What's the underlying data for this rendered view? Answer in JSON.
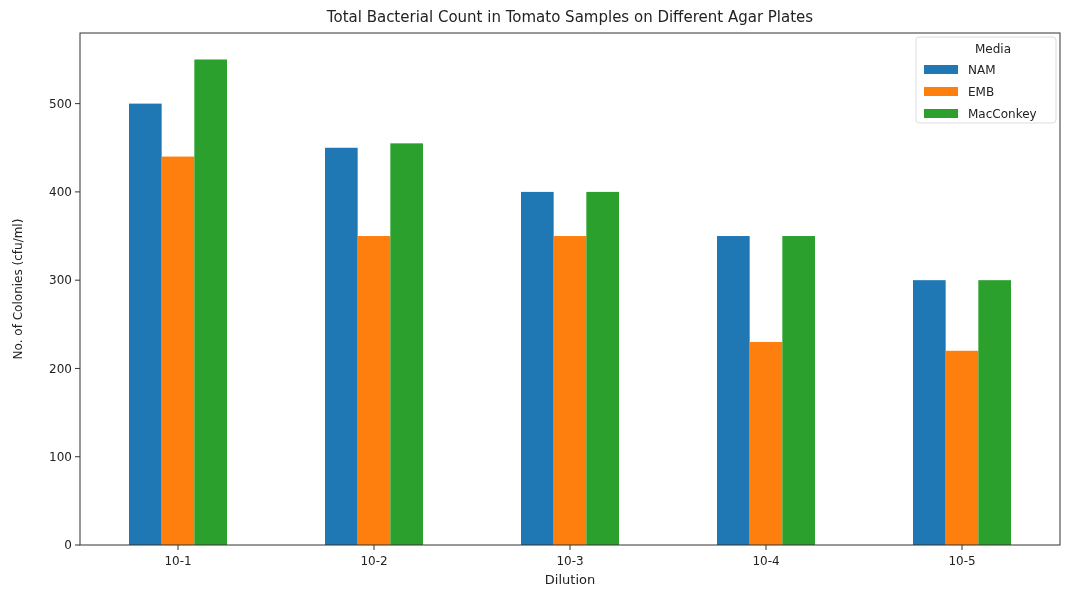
{
  "chart_data": {
    "type": "bar",
    "title": "Total Bacterial Count in Tomato Samples on Different Agar Plates",
    "xlabel": "Dilution",
    "ylabel": "No. of Colonies (cfu/ml)",
    "legend_title": "Media",
    "legend": "top right",
    "categories": [
      "10-1",
      "10-2",
      "10-3",
      "10-4",
      "10-5"
    ],
    "series": [
      {
        "name": "NAM",
        "color": "#1f77b4",
        "values": [
          500,
          450,
          400,
          350,
          300
        ]
      },
      {
        "name": "EMB",
        "color": "#ff7f0e",
        "values": [
          440,
          350,
          350,
          230,
          220
        ]
      },
      {
        "name": "MacConkey",
        "color": "#2ca02c",
        "values": [
          550,
          455,
          400,
          350,
          300
        ]
      }
    ],
    "ylim": [
      0,
      580
    ],
    "yticks": [
      0,
      100,
      200,
      300,
      400,
      500
    ]
  }
}
